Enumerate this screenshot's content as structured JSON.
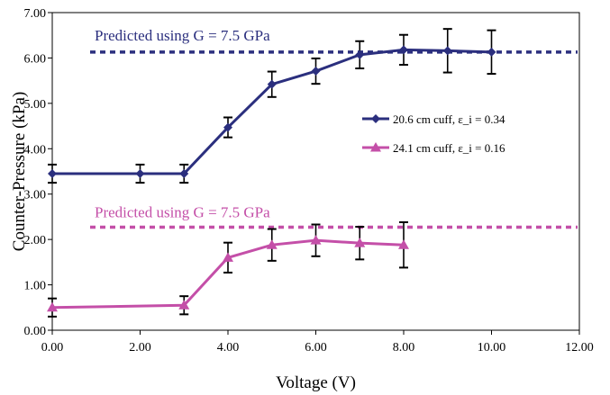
{
  "chart_data": {
    "type": "line",
    "xlabel": "Voltage (V)",
    "ylabel": "Counter-Pressure (kPa)",
    "xlim": [
      0,
      12
    ],
    "ylim": [
      0,
      7
    ],
    "x_ticks": [
      0,
      2,
      4,
      6,
      8,
      10,
      12
    ],
    "y_ticks": [
      0,
      1,
      2,
      3,
      4,
      5,
      6,
      7
    ],
    "x_tick_labels": [
      "0.00",
      "2.00",
      "4.00",
      "6.00",
      "8.00",
      "10.00",
      "12.00"
    ],
    "y_tick_labels": [
      "0.00",
      "1.00",
      "2.00",
      "3.00",
      "4.00",
      "5.00",
      "6.00",
      "7.00"
    ],
    "grid": false,
    "legend_position": "right",
    "series": [
      {
        "name": "20.6 cm cuff, ε_i = 0.34",
        "marker": "diamond",
        "color": "#2b2f7e",
        "x": [
          0,
          2,
          3,
          4,
          5,
          6,
          7,
          8,
          9,
          10
        ],
        "y": [
          3.45,
          3.45,
          3.45,
          4.47,
          5.42,
          5.71,
          6.07,
          6.18,
          6.16,
          6.13
        ],
        "error": [
          0.2,
          0.2,
          0.2,
          0.22,
          0.28,
          0.28,
          0.3,
          0.33,
          0.48,
          0.48
        ]
      },
      {
        "name": "24.1 cm cuff, ε_i = 0.16",
        "marker": "triangle",
        "color": "#c44fa8",
        "x": [
          0,
          3,
          4,
          5,
          6,
          7,
          8
        ],
        "y": [
          0.5,
          0.55,
          1.6,
          1.88,
          1.98,
          1.92,
          1.88
        ],
        "error": [
          0.2,
          0.2,
          0.33,
          0.35,
          0.35,
          0.36,
          0.5
        ]
      }
    ],
    "reference_lines": [
      {
        "label": "Predicted using G = 7.5 GPa",
        "y": 6.13,
        "color": "#2b2f7e"
      },
      {
        "label": "Predicted using G = 7.5 GPa",
        "y": 2.27,
        "color": "#c44fa8"
      }
    ]
  }
}
